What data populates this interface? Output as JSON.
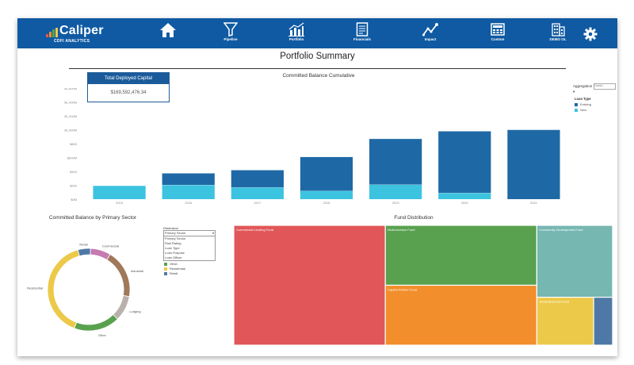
{
  "brand": {
    "name": "Caliper",
    "sub": "CDFI ANALYTICS"
  },
  "nav": [
    {
      "id": "home",
      "label": ""
    },
    {
      "id": "pipeline",
      "label": "Pipeline"
    },
    {
      "id": "portfolio",
      "label": "Portfolio"
    },
    {
      "id": "financials",
      "label": "Financials"
    },
    {
      "id": "impact",
      "label": "Impact"
    },
    {
      "id": "custom",
      "label": "Custom"
    },
    {
      "id": "demo",
      "label": "DEMO OL"
    },
    {
      "id": "settings",
      "label": ""
    }
  ],
  "page_title": "Portfolio Summary",
  "kpi": {
    "label": "Total Deployed Capital",
    "value": "$169,592,476.34"
  },
  "controls": {
    "aggregation_label": "Aggregation",
    "aggregation_value": "Cumul...",
    "loan_type_label": "Loan Type",
    "dimension_label": "Dimension",
    "dimension_value": "Primary Sector",
    "dimension_options": [
      "Primary Sector",
      "Risk Rating",
      "Loan Type",
      "Loan Purpose",
      "Loan Officer"
    ]
  },
  "colors": {
    "nav": "#0f5aa3",
    "existing": "#1e69a5",
    "new": "#3cc3e0"
  },
  "chart_data": [
    {
      "type": "bar",
      "title": "Committed Balance Cumulative",
      "categories": [
        "2015",
        "2016",
        "2017",
        "2018",
        "2019",
        "2020",
        "2021"
      ],
      "y_ticks": [
        "$0M",
        "$200",
        "$400",
        "$600M",
        "$800",
        "$1,000M",
        "$1,200M",
        "$1,400M",
        "$1,600M"
      ],
      "ylim": [
        0,
        1600
      ],
      "series": [
        {
          "name": "Existing",
          "color": "#1e69a5",
          "values": [
            0,
            170,
            250,
            490,
            660,
            890,
            1000
          ]
        },
        {
          "name": "New",
          "color": "#3cc3e0",
          "values": [
            195,
            205,
            170,
            120,
            210,
            90,
            0
          ]
        }
      ],
      "legend": "right"
    },
    {
      "type": "pie",
      "title": "Committed Balance by Primary Sector",
      "labels": [
        "Retail",
        "Commercial",
        "Industrial",
        "Lodging",
        "Other",
        "Residential"
      ],
      "values": [
        5,
        8,
        19,
        10,
        18,
        40
      ],
      "colors": [
        "#4e79a7",
        "#c57bb0",
        "#a0785a",
        "#bab0ac",
        "#59a14f",
        "#edc949"
      ],
      "legend_entries": [
        {
          "label": "Other",
          "color": "#59a14f"
        },
        {
          "label": "Residential",
          "color": "#edc949"
        },
        {
          "label": "Retail",
          "color": "#4e79a7"
        }
      ]
    },
    {
      "type": "treemap",
      "title": "Fund Distribution",
      "labels": [
        "Commercial Lending Fund",
        "Multi-Investor Fund",
        "Capital Partner Fund",
        "Community Development Fund",
        "Small Business Fund",
        ""
      ],
      "values": [
        40,
        20,
        20,
        12,
        6,
        2
      ],
      "colors": [
        "#e15759",
        "#59a14f",
        "#f28e2b",
        "#76b7b2",
        "#edc949",
        "#4e79a7"
      ]
    }
  ]
}
